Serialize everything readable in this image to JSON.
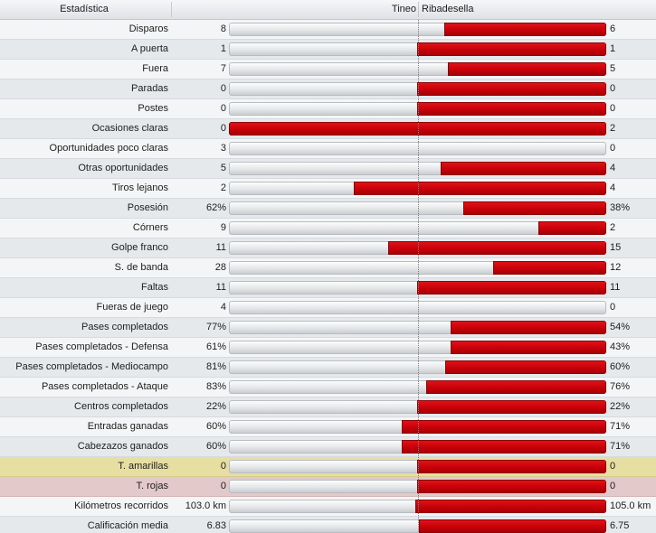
{
  "header": {
    "stat": "Estadística",
    "home": "Tineo",
    "away": "Ribadesella"
  },
  "colors": {
    "bar_fill": "#c80008",
    "track": "#e4e6e8",
    "yellow_row": "#e7dfa2",
    "red_row": "#e3c9c9"
  },
  "rows": [
    {
      "label": "Disparos",
      "home": "8",
      "away": "6",
      "away_share": 0.43,
      "style": "odd"
    },
    {
      "label": "A puerta",
      "home": "1",
      "away": "1",
      "away_share": 0.5,
      "style": "even"
    },
    {
      "label": "Fuera",
      "home": "7",
      "away": "5",
      "away_share": 0.42,
      "style": "odd"
    },
    {
      "label": "Paradas",
      "home": "0",
      "away": "0",
      "away_share": 0.5,
      "style": "even"
    },
    {
      "label": "Postes",
      "home": "0",
      "away": "0",
      "away_share": 0.5,
      "style": "odd"
    },
    {
      "label": "Ocasiones claras",
      "home": "0",
      "away": "2",
      "away_share": 1.0,
      "style": "even"
    },
    {
      "label": "Oportunidades poco claras",
      "home": "3",
      "away": "0",
      "away_share": 0.0,
      "style": "odd"
    },
    {
      "label": "Otras oportunidades",
      "home": "5",
      "away": "4",
      "away_share": 0.44,
      "style": "even"
    },
    {
      "label": "Tiros lejanos",
      "home": "2",
      "away": "4",
      "away_share": 0.67,
      "style": "odd"
    },
    {
      "label": "Posesión",
      "home": "62%",
      "away": "38%",
      "away_share": 0.38,
      "style": "even"
    },
    {
      "label": "Córners",
      "home": "9",
      "away": "2",
      "away_share": 0.18,
      "style": "odd"
    },
    {
      "label": "Golpe franco",
      "home": "11",
      "away": "15",
      "away_share": 0.577,
      "style": "even"
    },
    {
      "label": "S. de banda",
      "home": "28",
      "away": "12",
      "away_share": 0.3,
      "style": "odd"
    },
    {
      "label": "Faltas",
      "home": "11",
      "away": "11",
      "away_share": 0.5,
      "style": "even"
    },
    {
      "label": "Fueras de juego",
      "home": "4",
      "away": "0",
      "away_share": 0.0,
      "style": "odd"
    },
    {
      "label": "Pases completados",
      "home": "77%",
      "away": "54%",
      "away_share": 0.412,
      "style": "even"
    },
    {
      "label": "Pases completados - Defensa",
      "home": "61%",
      "away": "43%",
      "away_share": 0.413,
      "style": "odd"
    },
    {
      "label": "Pases completados - Mediocampo",
      "home": "81%",
      "away": "60%",
      "away_share": 0.426,
      "style": "even"
    },
    {
      "label": "Pases completados - Ataque",
      "home": "83%",
      "away": "76%",
      "away_share": 0.478,
      "style": "odd"
    },
    {
      "label": "Centros completados",
      "home": "22%",
      "away": "22%",
      "away_share": 0.5,
      "style": "even"
    },
    {
      "label": "Entradas ganadas",
      "home": "60%",
      "away": "71%",
      "away_share": 0.542,
      "style": "odd"
    },
    {
      "label": "Cabezazos ganados",
      "home": "60%",
      "away": "71%",
      "away_share": 0.542,
      "style": "even"
    },
    {
      "label": "T. amarillas",
      "home": "0",
      "away": "0",
      "away_share": 0.5,
      "style": "yellow"
    },
    {
      "label": "T. rojas",
      "home": "0",
      "away": "0",
      "away_share": 0.5,
      "style": "red"
    },
    {
      "label": "Kilómetros recorridos",
      "home": "103.0 km",
      "away": "105.0 km",
      "away_share": 0.505,
      "style": "odd"
    },
    {
      "label": "Calificación media",
      "home": "6.83",
      "away": "6.75",
      "away_share": 0.497,
      "style": "even"
    }
  ]
}
